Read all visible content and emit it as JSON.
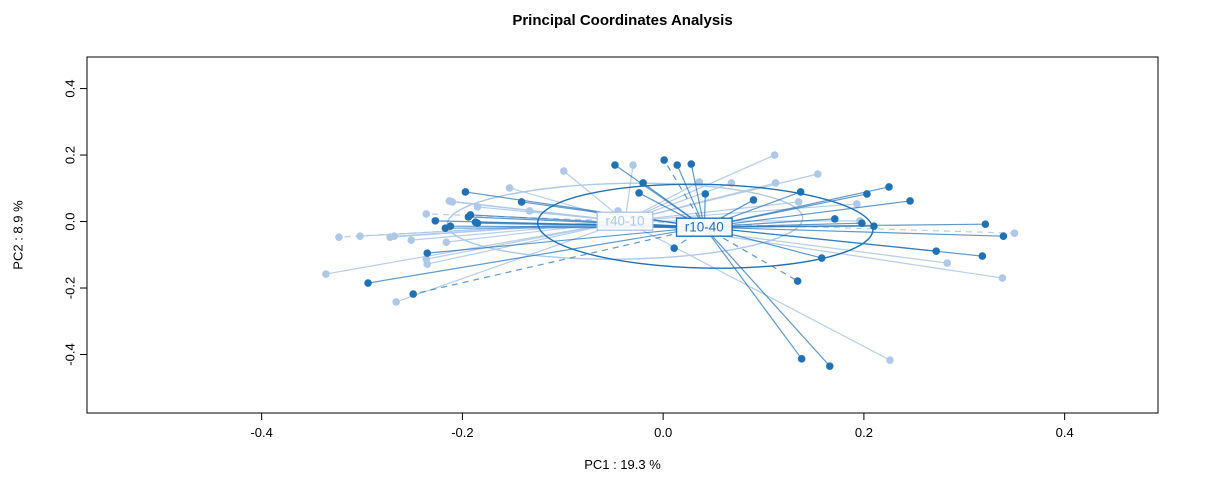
{
  "title": "Principal Coordinates Analysis",
  "colors": {
    "group_dark": "#2171b5",
    "group_light": "#aec8e8",
    "axis": "#000000",
    "background": "#ffffff",
    "label_box_fill": "#ffffff"
  },
  "chart_data": {
    "type": "scatter",
    "subtype": "pcoa-ordination-spider",
    "title": "Principal Coordinates Analysis",
    "xlabel": "PC1 :  19.3 %",
    "ylabel": "PC2 :  8.9 %",
    "xlim": [
      -0.574,
      0.493
    ],
    "ylim": [
      -0.576,
      0.495
    ],
    "x_ticks": [
      -0.4,
      -0.2,
      0.0,
      0.2,
      0.4
    ],
    "x_tick_labels": [
      "-0.4",
      "-0.2",
      "0.0",
      "0.2",
      "0.4"
    ],
    "y_ticks": [
      -0.4,
      -0.2,
      0.0,
      0.2,
      0.4
    ],
    "y_tick_labels": [
      "-0.4",
      "-0.2",
      "0.0",
      "0.2",
      "0.4"
    ],
    "grid": false,
    "legend_position": "none",
    "annotation_style": "centroid labels in boxes, spider lines to centroid, covariance ellipses",
    "groups": [
      {
        "name": "r40-10",
        "color": "#aec8e8",
        "centroid": [
          -0.038,
          0.001
        ],
        "ellipse": {
          "cx": -0.038,
          "cy": 0.001,
          "rx": 0.177,
          "ry": 0.114,
          "angle_deg": -1.0
        },
        "dashed_spokes": [
          6,
          10,
          27
        ],
        "points": [
          [
            -0.099,
            0.152
          ],
          [
            -0.153,
            0.101
          ],
          [
            -0.21,
            0.059
          ],
          [
            -0.213,
            0.062
          ],
          [
            -0.133,
            0.032
          ],
          [
            -0.185,
            0.044
          ],
          [
            -0.236,
            0.023
          ],
          [
            -0.272,
            -0.047
          ],
          [
            -0.268,
            -0.044
          ],
          [
            -0.302,
            -0.044
          ],
          [
            -0.323,
            -0.047
          ],
          [
            -0.251,
            -0.056
          ],
          [
            -0.216,
            -0.062
          ],
          [
            -0.236,
            -0.113
          ],
          [
            -0.235,
            -0.128
          ],
          [
            -0.336,
            -0.158
          ],
          [
            -0.266,
            -0.242
          ],
          [
            -0.03,
            0.17
          ],
          [
            -0.045,
            0.032
          ],
          [
            0.036,
            0.119
          ],
          [
            0.068,
            0.116
          ],
          [
            0.111,
            0.2
          ],
          [
            0.112,
            0.116
          ],
          [
            0.154,
            0.143
          ],
          [
            0.135,
            0.059
          ],
          [
            0.193,
            0.053
          ],
          [
            0.196,
            0.002
          ],
          [
            0.35,
            -0.035
          ],
          [
            0.283,
            -0.125
          ],
          [
            0.338,
            -0.17
          ],
          [
            0.226,
            -0.417
          ]
        ]
      },
      {
        "name": "r10-40",
        "color": "#2171b5",
        "centroid": [
          0.041,
          -0.017
        ],
        "ellipse": {
          "cx": 0.042,
          "cy": -0.014,
          "rx": 0.167,
          "ry": 0.126,
          "angle_deg": 1.2
        },
        "dashed_spokes": [
          12,
          13,
          27,
          33
        ],
        "points": [
          [
            -0.048,
            0.17
          ],
          [
            -0.197,
            0.089
          ],
          [
            -0.141,
            0.059
          ],
          [
            -0.227,
            0.002
          ],
          [
            -0.192,
            0.02
          ],
          [
            -0.187,
            -0.002
          ],
          [
            -0.217,
            -0.02
          ],
          [
            -0.212,
            -0.014
          ],
          [
            -0.194,
            0.014
          ],
          [
            -0.185,
            -0.005
          ],
          [
            -0.235,
            -0.095
          ],
          [
            -0.294,
            -0.185
          ],
          [
            -0.249,
            -0.218
          ],
          [
            0.001,
            0.185
          ],
          [
            0.014,
            0.17
          ],
          [
            0.028,
            0.173
          ],
          [
            -0.02,
            0.116
          ],
          [
            -0.024,
            0.086
          ],
          [
            0.042,
            0.083
          ],
          [
            0.137,
            0.089
          ],
          [
            0.09,
            0.065
          ],
          [
            0.203,
            0.083
          ],
          [
            0.225,
            0.104
          ],
          [
            0.246,
            0.062
          ],
          [
            0.171,
            0.008
          ],
          [
            0.198,
            -0.005
          ],
          [
            0.21,
            -0.014
          ],
          [
            0.011,
            -0.08
          ],
          [
            0.158,
            -0.11
          ],
          [
            0.272,
            -0.089
          ],
          [
            0.321,
            -0.008
          ],
          [
            0.339,
            -0.044
          ],
          [
            0.318,
            -0.104
          ],
          [
            0.134,
            -0.179
          ],
          [
            0.138,
            -0.413
          ],
          [
            0.166,
            -0.435
          ]
        ]
      }
    ]
  }
}
